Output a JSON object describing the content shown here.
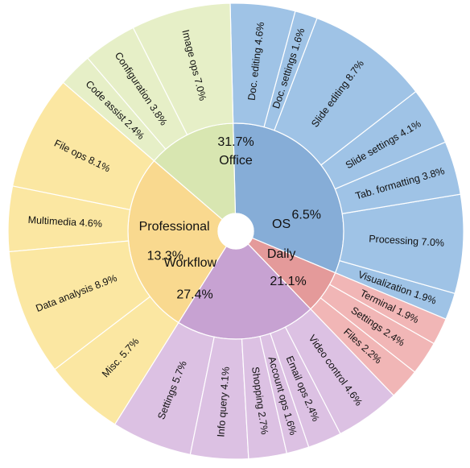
{
  "chart_data": {
    "type": "sunburst",
    "title": "",
    "colors": {
      "Office": {
        "inner": "#86add7",
        "outer": "#9fc3e6"
      },
      "OS": {
        "inner": "#e49a9a",
        "outer": "#f1b6b6"
      },
      "Daily": {
        "inner": "#c7a2d2",
        "outer": "#dcc1e3"
      },
      "Workflow": {
        "inner": "#f9d98f",
        "outer": "#fbe7a2"
      },
      "Professional": {
        "inner": "#d8e6b1",
        "outer": "#e6efc7"
      }
    },
    "categories": [
      {
        "name": "Office",
        "pct_label": "31.7%",
        "value": 31.7,
        "children": [
          {
            "label": "Visualization 1.9%",
            "value": 1.9
          },
          {
            "label": "Processing 7.0%",
            "value": 7.0
          },
          {
            "label": "Tab. formatting 3.8%",
            "value": 3.8
          },
          {
            "label": "Slide settings 4.1%",
            "value": 4.1
          },
          {
            "label": "Slide editing 8.7%",
            "value": 8.7
          },
          {
            "label": "Doc. settings 1.6%",
            "value": 1.6
          },
          {
            "label": "Doc. editing 4.6%",
            "value": 4.6
          }
        ]
      },
      {
        "name": "Professional",
        "pct_label": "13.3%",
        "value": 13.3,
        "children": [
          {
            "label": "Image ops 7.0%",
            "value": 7.0
          },
          {
            "label": "Configuration 3.8%",
            "value": 3.8
          },
          {
            "label": "Code assist 2.4%",
            "value": 2.4
          }
        ]
      },
      {
        "name": "Workflow",
        "pct_label": "27.4%",
        "value": 27.4,
        "children": [
          {
            "label": "File ops 8.1%",
            "value": 8.1
          },
          {
            "label": "Multimedia 4.6%",
            "value": 4.6
          },
          {
            "label": "Data analysis 8.9%",
            "value": 8.9
          },
          {
            "label": "Misc. 5.7%",
            "value": 5.7
          }
        ]
      },
      {
        "name": "Daily",
        "pct_label": "21.1%",
        "value": 21.1,
        "children": [
          {
            "label": "Settings 5.7%",
            "value": 5.7
          },
          {
            "label": "Info query 4.1%",
            "value": 4.1
          },
          {
            "label": "Shopping 2.7%",
            "value": 2.7
          },
          {
            "label": "Account ops 1.6%",
            "value": 1.6
          },
          {
            "label": "Email ops 2.4%",
            "value": 2.4
          },
          {
            "label": "Video control 4.6%",
            "value": 4.6
          }
        ]
      },
      {
        "name": "OS",
        "pct_label": "6.5%",
        "value": 6.5,
        "children": [
          {
            "label": "Files 2.2%",
            "value": 2.2
          },
          {
            "label": "Settings 2.4%",
            "value": 2.4
          },
          {
            "label": "Terminal 1.9%",
            "value": 1.9
          }
        ]
      }
    ]
  }
}
